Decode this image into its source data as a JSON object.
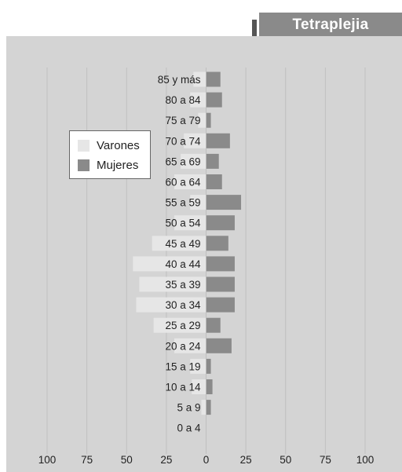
{
  "header": {
    "title": "Tetraplejia"
  },
  "colors": {
    "panel": "#d4d4d4",
    "varones": "#e6e6e6",
    "mujeres": "#8a8a8a",
    "title_tab": "#8a8a8a",
    "title_tab_shadow": "#555555",
    "grid": "#bfbfbf",
    "text": "#222222"
  },
  "chart_data": {
    "type": "bar",
    "orientation": "horizontal",
    "layout": "population-pyramid",
    "title": "Tetraplejia",
    "categories": [
      "85 y más",
      "80 a 84",
      "75 a 79",
      "70 a 74",
      "65 a 69",
      "60 a 64",
      "55 a 59",
      "50 a 54",
      "45 a 49",
      "40 a 44",
      "35 a 39",
      "30 a 34",
      "25 a 29",
      "20 a 24",
      "15 a 19",
      "10 a 14",
      "5 a 9",
      "0 a 4"
    ],
    "series": [
      {
        "name": "Varones",
        "side": "left",
        "values": [
          8,
          10,
          5,
          14,
          16,
          20,
          10,
          20,
          34,
          46,
          42,
          44,
          33,
          20,
          10,
          9,
          3,
          0
        ]
      },
      {
        "name": "Mujeres",
        "side": "right",
        "values": [
          9,
          10,
          3,
          15,
          8,
          10,
          22,
          18,
          14,
          18,
          18,
          18,
          9,
          16,
          3,
          4,
          3,
          0
        ]
      }
    ],
    "xlim": [
      -100,
      100
    ],
    "xticks": [
      -100,
      -75,
      -50,
      -25,
      0,
      25,
      50,
      75,
      100
    ],
    "xtick_labels": [
      "100",
      "75",
      "50",
      "25",
      "0",
      "25",
      "50",
      "75",
      "100"
    ],
    "grid": true,
    "legend_position": "top-left",
    "xlabel": "",
    "ylabel": ""
  }
}
